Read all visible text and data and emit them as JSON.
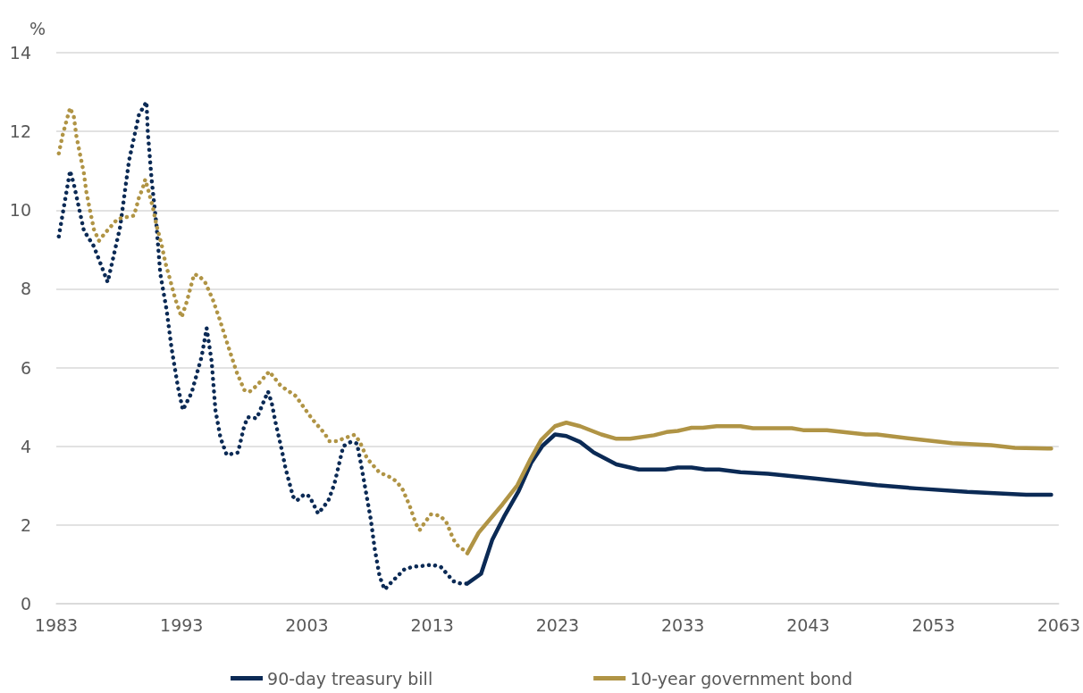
{
  "chart_data": {
    "type": "line",
    "ylabel": "%",
    "xlim": [
      1983,
      2063
    ],
    "xticks": [
      1983,
      1993,
      2003,
      2013,
      2023,
      2033,
      2043,
      2053,
      2063
    ],
    "ylim": [
      0,
      14
    ],
    "yticks": [
      0,
      2,
      4,
      6,
      8,
      10,
      12,
      14
    ],
    "grid": "y",
    "legend": "bottom",
    "marker": "none",
    "series": [
      {
        "color": "#0b2a55",
        "line_style": "dotted",
        "x": [
          1983.2,
          1984.1,
          1984.4,
          1985.2,
          1986.0,
          1987.1,
          1987.6,
          1988.1,
          1988.8,
          1989.6,
          1990.2,
          1990.3,
          1990.6,
          1991.0,
          1991.3,
          1991.8,
          1992.2,
          1992.7,
          1993.1,
          1993.8,
          1994.6,
          1995.0,
          1995.4,
          1995.7,
          1996.1,
          1996.6,
          1997.5,
          1998.0,
          1998.3,
          1999.0,
          1999.6,
          1999.9,
          2000.2,
          2000.5,
          2001.0,
          2001.3,
          2001.9,
          2002.2,
          2002.8,
          2003.2,
          2003.9,
          2004.7,
          2005.2,
          2005.9,
          2006.5,
          2007.0,
          2007.3,
          2007.7,
          2008.1,
          2008.4,
          2008.8,
          2009.2,
          2009.7,
          2010.8,
          2011.5,
          2012.2,
          2013.0,
          2013.7,
          2014.7,
          2015.3,
          2015.8
        ],
        "values": [
          9.33,
          11.0,
          10.66,
          9.48,
          9.08,
          8.17,
          8.87,
          9.58,
          11.25,
          12.43,
          12.75,
          12.0,
          10.8,
          9.6,
          8.38,
          7.47,
          6.49,
          5.52,
          4.92,
          5.36,
          6.28,
          7.0,
          6.15,
          4.92,
          4.22,
          3.78,
          3.84,
          4.52,
          4.74,
          4.71,
          5.17,
          5.39,
          5.09,
          4.6,
          3.9,
          3.43,
          2.72,
          2.62,
          2.78,
          2.73,
          2.29,
          2.61,
          3.05,
          4.0,
          4.11,
          4.07,
          3.58,
          2.86,
          2.14,
          1.42,
          0.7,
          0.36,
          0.53,
          0.88,
          0.94,
          0.96,
          0.99,
          0.93,
          0.57,
          0.51,
          0.51
        ]
      },
      {
        "color": "#b09445",
        "line_style": "dotted",
        "x": [
          1983.2,
          1983.5,
          1983.9,
          1984.1,
          1984.4,
          1984.6,
          1984.9,
          1985.2,
          1985.4,
          1985.7,
          1986.0,
          1986.4,
          1986.9,
          1987.9,
          1989.2,
          1989.6,
          1989.9,
          1990.1,
          1990.3,
          1990.7,
          1991.0,
          1991.4,
          1991.7,
          1992.1,
          1992.5,
          1993.0,
          1993.4,
          1994.0,
          1994.4,
          1994.9,
          1995.5,
          1996.0,
          1996.7,
          1997.4,
          1998.0,
          1998.4,
          1999.0,
          2000.0,
          2000.9,
          2002.1,
          2003.4,
          2004.4,
          2004.8,
          2005.4,
          2006.1,
          2006.8,
          2007.2,
          2007.8,
          2008.8,
          2009.5,
          2010.1,
          2010.6,
          2011.2,
          2011.7,
          2012.0,
          2012.4,
          2012.9,
          2013.6,
          2014.1,
          2014.7,
          2015.1,
          2015.8
        ],
        "values": [
          11.44,
          11.9,
          12.37,
          12.6,
          12.37,
          11.89,
          11.41,
          10.94,
          10.46,
          9.98,
          9.51,
          9.22,
          9.42,
          9.78,
          9.86,
          10.32,
          10.56,
          10.78,
          10.56,
          10.08,
          9.61,
          9.13,
          8.67,
          8.21,
          7.74,
          7.28,
          7.66,
          8.37,
          8.33,
          8.15,
          7.72,
          7.26,
          6.56,
          5.88,
          5.43,
          5.38,
          5.54,
          5.9,
          5.54,
          5.28,
          4.7,
          4.33,
          4.13,
          4.13,
          4.22,
          4.29,
          4.13,
          3.69,
          3.33,
          3.24,
          3.12,
          2.93,
          2.49,
          2.03,
          1.87,
          2.06,
          2.27,
          2.24,
          2.09,
          1.63,
          1.45,
          1.31
        ]
      },
      {
        "name": "90-day treasury bill",
        "color": "#0b2a55",
        "line_style": "solid",
        "x": [
          2015.8,
          2016.9,
          2017.8,
          2018.8,
          2019.9,
          2020.9,
          2021.8,
          2022.8,
          2023.7,
          2024.8,
          2025.9,
          2027.7,
          2029.5,
          2031.6,
          2032.6,
          2033.7,
          2034.8,
          2035.9,
          2037.6,
          2039.8,
          2043.5,
          2048.5,
          2051.6,
          2055.7,
          2060.4,
          2062.4
        ],
        "values": [
          0.51,
          0.76,
          1.63,
          2.25,
          2.86,
          3.58,
          4.01,
          4.3,
          4.26,
          4.11,
          3.84,
          3.54,
          3.41,
          3.41,
          3.46,
          3.46,
          3.41,
          3.41,
          3.34,
          3.3,
          3.18,
          3.01,
          2.93,
          2.84,
          2.77,
          2.77
        ]
      },
      {
        "name": "10-year government bond",
        "color": "#b09445",
        "line_style": "solid",
        "x": [
          2015.8,
          2016.7,
          2018.6,
          2019.8,
          2020.8,
          2021.7,
          2022.8,
          2023.7,
          2024.8,
          2026.5,
          2027.7,
          2028.8,
          2030.7,
          2031.7,
          2032.6,
          2033.7,
          2034.6,
          2035.7,
          2037.6,
          2038.6,
          2041.7,
          2042.6,
          2044.5,
          2047.6,
          2048.5,
          2051.6,
          2054.5,
          2057.6,
          2059.5,
          2062.1,
          2062.4
        ],
        "values": [
          1.28,
          1.8,
          2.52,
          3.01,
          3.65,
          4.16,
          4.51,
          4.6,
          4.51,
          4.3,
          4.19,
          4.19,
          4.28,
          4.36,
          4.39,
          4.47,
          4.47,
          4.51,
          4.51,
          4.46,
          4.46,
          4.41,
          4.41,
          4.3,
          4.3,
          4.18,
          4.08,
          4.03,
          3.96,
          3.94,
          3.94
        ]
      }
    ]
  }
}
